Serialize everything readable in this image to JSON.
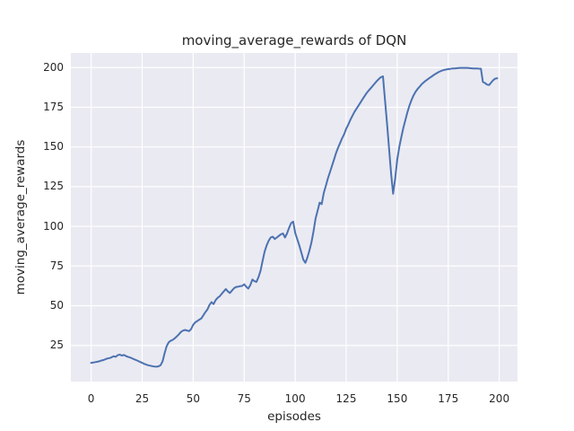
{
  "figure": {
    "background": "#ffffff",
    "plot_background": "#eaeaf2",
    "grid_color": "#ffffff",
    "text_color": "#262626"
  },
  "chart_data": {
    "type": "line",
    "title": "moving_average_rewards of DQN",
    "xlabel": "episodes",
    "ylabel": "moving_average_rewards",
    "grid": true,
    "legend_position": "none",
    "x_ticks": [
      0,
      25,
      50,
      75,
      100,
      125,
      150,
      175,
      200
    ],
    "y_ticks": [
      25,
      50,
      75,
      100,
      125,
      150,
      175,
      200
    ],
    "xlim": [
      -9.95,
      208.95
    ],
    "ylim": [
      2.2,
      209.2
    ],
    "series": [
      {
        "name": "moving_average_rewards",
        "color": "#4c72b0",
        "x": [
          0,
          1,
          2,
          3,
          4,
          5,
          6,
          7,
          8,
          9,
          10,
          11,
          12,
          13,
          14,
          15,
          16,
          17,
          18,
          19,
          20,
          21,
          22,
          23,
          24,
          25,
          26,
          27,
          28,
          29,
          30,
          31,
          32,
          33,
          34,
          35,
          36,
          37,
          38,
          39,
          40,
          41,
          42,
          43,
          44,
          45,
          46,
          47,
          48,
          49,
          50,
          51,
          52,
          53,
          54,
          55,
          56,
          57,
          58,
          59,
          60,
          61,
          62,
          63,
          64,
          65,
          66,
          67,
          68,
          69,
          70,
          71,
          72,
          73,
          74,
          75,
          76,
          77,
          78,
          79,
          80,
          81,
          82,
          83,
          84,
          85,
          86,
          87,
          88,
          89,
          90,
          91,
          92,
          93,
          94,
          95,
          96,
          97,
          98,
          99,
          100,
          101,
          102,
          103,
          104,
          105,
          106,
          107,
          108,
          109,
          110,
          111,
          112,
          113,
          114,
          115,
          116,
          117,
          118,
          119,
          120,
          121,
          122,
          123,
          124,
          125,
          126,
          127,
          128,
          129,
          130,
          131,
          132,
          133,
          134,
          135,
          136,
          137,
          138,
          139,
          140,
          141,
          142,
          143,
          144,
          145,
          146,
          147,
          148,
          149,
          150,
          151,
          152,
          153,
          154,
          155,
          156,
          157,
          158,
          159,
          160,
          161,
          162,
          163,
          164,
          165,
          166,
          167,
          168,
          169,
          170,
          171,
          172,
          173,
          174,
          175,
          176,
          177,
          178,
          179,
          180,
          181,
          182,
          183,
          184,
          185,
          186,
          187,
          188,
          189,
          190,
          191,
          192,
          193,
          194,
          195,
          196,
          197,
          198,
          199
        ],
        "y": [
          14,
          14.2,
          14.5,
          14.7,
          15,
          15.5,
          15.8,
          16.3,
          16.8,
          17,
          17.5,
          18.2,
          17.8,
          18.8,
          19.2,
          18.6,
          19,
          18.4,
          17.8,
          17.4,
          16.9,
          16.3,
          15.8,
          15.2,
          14.6,
          14,
          13.4,
          12.9,
          12.5,
          12.2,
          11.9,
          11.7,
          11.6,
          11.8,
          12.5,
          15,
          20,
          24.5,
          27,
          28,
          28.5,
          29.5,
          30.7,
          32,
          33.5,
          34.3,
          34.7,
          34.4,
          34,
          35.3,
          38,
          39.5,
          40.3,
          41.2,
          42,
          44,
          46,
          47.7,
          50.5,
          52.3,
          51,
          53.5,
          55,
          56,
          57.5,
          59,
          60.5,
          59,
          58,
          59.5,
          61,
          61.8,
          62,
          62.3,
          62.5,
          63.5,
          62,
          60.8,
          63,
          66.5,
          65.5,
          65,
          68,
          72,
          78,
          84,
          88,
          91,
          93,
          93.5,
          92,
          93,
          94,
          95,
          95.5,
          93,
          95.5,
          99,
          102,
          103,
          96,
          92,
          88,
          83.5,
          79,
          77,
          80.5,
          85,
          90,
          97,
          105,
          110,
          115,
          114,
          121,
          125.5,
          130,
          134,
          138,
          142,
          146,
          149.5,
          152.5,
          155.5,
          158,
          161.5,
          164,
          167,
          169.5,
          172,
          174,
          176,
          178,
          180,
          182,
          184,
          185.5,
          187,
          188.5,
          190,
          191.5,
          192.8,
          194,
          194.5,
          180,
          165,
          149,
          133,
          120.5,
          130,
          142,
          150,
          156,
          162,
          167,
          172,
          176,
          179.5,
          182.5,
          184.8,
          186.5,
          188,
          189.5,
          190.7,
          191.7,
          192.7,
          193.6,
          194.5,
          195.4,
          196.2,
          197,
          197.6,
          198.1,
          198.5,
          198.8,
          199,
          199.2,
          199.4,
          199.5,
          199.6,
          199.7,
          199.8,
          199.8,
          199.8,
          199.8,
          199.7,
          199.6,
          199.5,
          199.4,
          199.4,
          199.3,
          199.3,
          191,
          190.3,
          189.3,
          189,
          190.5,
          192,
          193,
          193.3
        ]
      }
    ]
  }
}
